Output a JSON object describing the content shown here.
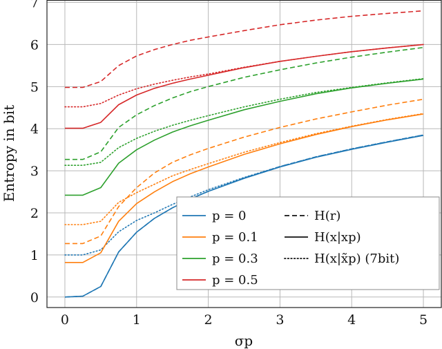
{
  "chart_data": {
    "type": "line",
    "title": "",
    "xlabel": "σp",
    "ylabel": "Entropy in bit",
    "xlim": [
      -0.25,
      5.25
    ],
    "ylim": [
      -0.25,
      7.05
    ],
    "xticks": [
      0,
      1,
      2,
      3,
      4,
      5
    ],
    "yticks": [
      0,
      1,
      2,
      3,
      4,
      5,
      6,
      7
    ],
    "grid": true,
    "legend_position": "bottom-right",
    "x": [
      0,
      0.25,
      0.5,
      0.75,
      1,
      1.25,
      1.5,
      1.75,
      2,
      2.5,
      3,
      3.5,
      4,
      4.5,
      5
    ],
    "colors": {
      "p0": "#1f77b4",
      "p01": "#ff7f0e",
      "p03": "#2ca02c",
      "p05": "#d62728"
    },
    "legend_colors": [
      {
        "label": "p = 0",
        "color": "#1f77b4"
      },
      {
        "label": "p = 0.1",
        "color": "#ff7f0e"
      },
      {
        "label": "p = 0.3",
        "color": "#2ca02c"
      },
      {
        "label": "p = 0.5",
        "color": "#d62728"
      }
    ],
    "legend_styles": [
      {
        "label": "H(r)",
        "style": "dashed"
      },
      {
        "label": "H(x|xp)",
        "style": "solid"
      },
      {
        "label": "H(x|x̃p) (7bit)",
        "style": "dotted"
      }
    ],
    "series": [
      {
        "p": "0",
        "kind": "H(r)",
        "color": "#1f77b4",
        "style": "dashed",
        "values": [
          0,
          0.02,
          0.25,
          1.07,
          1.54,
          1.87,
          2.12,
          2.33,
          2.51,
          2.83,
          3.1,
          3.33,
          3.52,
          3.69,
          3.85
        ]
      },
      {
        "p": "0",
        "kind": "H(x|xp)",
        "color": "#1f77b4",
        "style": "solid",
        "values": [
          0,
          0.02,
          0.25,
          1.07,
          1.54,
          1.87,
          2.12,
          2.33,
          2.51,
          2.82,
          3.09,
          3.32,
          3.51,
          3.68,
          3.84
        ]
      },
      {
        "p": "0",
        "kind": "H(x|x̃p) (7bit)",
        "color": "#1f77b4",
        "style": "dotted",
        "values": [
          1.0,
          1.0,
          1.12,
          1.55,
          1.82,
          2.0,
          2.2,
          2.38,
          2.55,
          2.84,
          3.1,
          3.33,
          3.52,
          3.69,
          3.85
        ]
      },
      {
        "p": "0.1",
        "kind": "H(r)",
        "color": "#ff7f0e",
        "style": "dashed",
        "values": [
          1.27,
          1.27,
          1.45,
          2.15,
          2.6,
          2.95,
          3.2,
          3.38,
          3.53,
          3.8,
          4.03,
          4.23,
          4.4,
          4.56,
          4.7
        ]
      },
      {
        "p": "0.1",
        "kind": "H(x|xp)",
        "color": "#ff7f0e",
        "style": "solid",
        "values": [
          0.82,
          0.82,
          1.05,
          1.8,
          2.22,
          2.5,
          2.74,
          2.93,
          3.09,
          3.39,
          3.64,
          3.86,
          4.05,
          4.21,
          4.35
        ]
      },
      {
        "p": "0.1",
        "kind": "H(x|x̃p) (7bit)",
        "color": "#ff7f0e",
        "style": "dotted",
        "values": [
          1.72,
          1.72,
          1.8,
          2.25,
          2.48,
          2.68,
          2.88,
          3.03,
          3.17,
          3.44,
          3.67,
          3.88,
          4.06,
          4.22,
          4.36
        ]
      },
      {
        "p": "0.3",
        "kind": "H(r)",
        "color": "#2ca02c",
        "style": "dashed",
        "values": [
          3.27,
          3.27,
          3.45,
          4.03,
          4.33,
          4.55,
          4.73,
          4.88,
          5.0,
          5.22,
          5.4,
          5.56,
          5.7,
          5.82,
          5.93
        ]
      },
      {
        "p": "0.3",
        "kind": "H(x|xp)",
        "color": "#2ca02c",
        "style": "solid",
        "values": [
          2.42,
          2.42,
          2.6,
          3.18,
          3.5,
          3.73,
          3.92,
          4.07,
          4.2,
          4.45,
          4.65,
          4.83,
          4.97,
          5.08,
          5.18
        ]
      },
      {
        "p": "0.3",
        "kind": "H(x|x̃p) (7bit)",
        "color": "#2ca02c",
        "style": "dotted",
        "values": [
          3.13,
          3.13,
          3.2,
          3.55,
          3.77,
          3.94,
          4.08,
          4.2,
          4.31,
          4.52,
          4.7,
          4.86,
          4.98,
          5.09,
          5.19
        ]
      },
      {
        "p": "0.5",
        "kind": "H(r)",
        "color": "#d62728",
        "style": "dashed",
        "values": [
          4.98,
          4.98,
          5.12,
          5.5,
          5.73,
          5.88,
          6.0,
          6.1,
          6.18,
          6.33,
          6.47,
          6.58,
          6.67,
          6.74,
          6.8
        ]
      },
      {
        "p": "0.5",
        "kind": "H(x|xp)",
        "color": "#d62728",
        "style": "solid",
        "values": [
          4.01,
          4.01,
          4.15,
          4.57,
          4.8,
          4.96,
          5.08,
          5.18,
          5.27,
          5.45,
          5.6,
          5.72,
          5.83,
          5.92,
          6.0
        ]
      },
      {
        "p": "0.5",
        "kind": "H(x|x̃p) (7bit)",
        "color": "#d62728",
        "style": "dotted",
        "values": [
          4.52,
          4.52,
          4.6,
          4.8,
          4.95,
          5.06,
          5.15,
          5.23,
          5.3,
          5.46,
          5.6,
          5.72,
          5.83,
          5.92,
          6.0
        ]
      }
    ]
  }
}
